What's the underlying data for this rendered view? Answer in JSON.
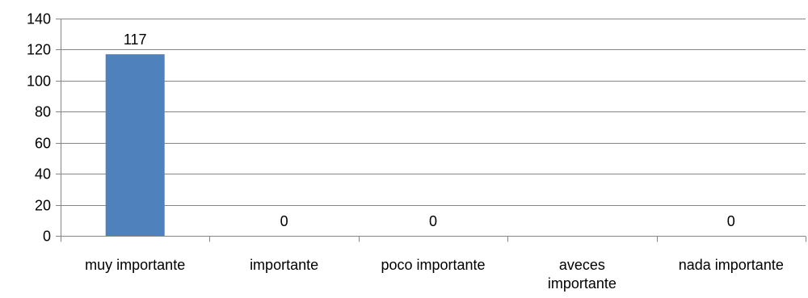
{
  "chart_data": {
    "type": "bar",
    "categories": [
      "muy importante",
      "importante",
      "poco importante",
      "aveces importante",
      "nada importante"
    ],
    "category_label_lines": [
      [
        "muy importante"
      ],
      [
        "importante"
      ],
      [
        "poco importante"
      ],
      [
        "aveces",
        "importante"
      ],
      [
        "nada importante"
      ]
    ],
    "values": [
      117,
      0,
      0,
      null,
      0
    ],
    "data_labels": [
      "117",
      "0",
      "0",
      "",
      "0"
    ],
    "ylim": [
      0,
      140
    ],
    "yticks": [
      0,
      20,
      40,
      60,
      80,
      100,
      120,
      140
    ],
    "ytick_labels": [
      "0",
      "20",
      "40",
      "60",
      "80",
      "100",
      "120",
      "140"
    ],
    "grid": true,
    "legend": "none",
    "bar_color": "#4f81bd",
    "grid_color": "#868686",
    "axis_color": "#868686"
  }
}
